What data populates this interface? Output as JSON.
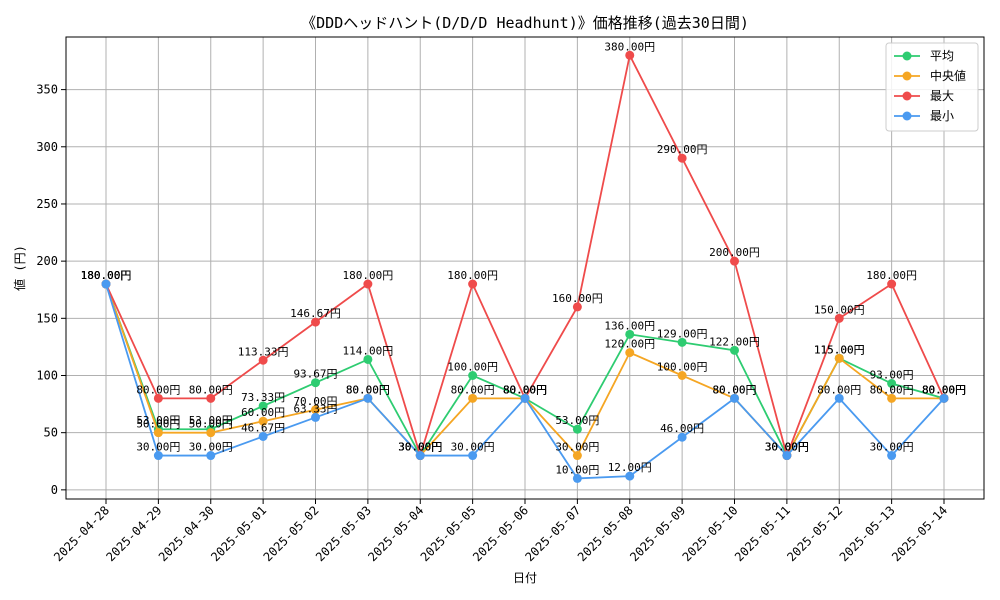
{
  "chart_data": {
    "type": "line",
    "title": "《DDDヘッドハント(D/D/D Headhunt)》価格推移(過去30日間)",
    "xlabel": "日付",
    "ylabel": "値 (円)",
    "ylim": [
      -8,
      396
    ],
    "yticks": [
      0,
      50,
      100,
      150,
      200,
      250,
      300,
      350
    ],
    "grid": true,
    "legend_position": "top-right",
    "label_suffix": "円",
    "categories": [
      "2025-04-28",
      "2025-04-29",
      "2025-04-30",
      "2025-05-01",
      "2025-05-02",
      "2025-05-03",
      "2025-05-04",
      "2025-05-05",
      "2025-05-06",
      "2025-05-07",
      "2025-05-08",
      "2025-05-09",
      "2025-05-10",
      "2025-05-11",
      "2025-05-12",
      "2025-05-13",
      "2025-05-14"
    ],
    "series": [
      {
        "name": "平均",
        "color": "#2ecc71",
        "values": [
          180,
          53,
          53,
          73.33,
          93.67,
          114,
          30,
          100,
          80,
          53,
          136,
          129,
          122,
          30,
          115,
          93,
          80
        ]
      },
      {
        "name": "中央値",
        "color": "#f5a623",
        "values": [
          180,
          50,
          50,
          60,
          70,
          80,
          30,
          80,
          80,
          30,
          120,
          100,
          80,
          30,
          115,
          80,
          80
        ]
      },
      {
        "name": "最大",
        "color": "#ef4b4b",
        "values": [
          180,
          80,
          80,
          113.33,
          146.67,
          180,
          30,
          180,
          80,
          160,
          380,
          290,
          200,
          30,
          150,
          180,
          80
        ]
      },
      {
        "name": "最小",
        "color": "#4a9af0",
        "values": [
          180,
          30,
          30,
          46.67,
          63.33,
          80,
          30,
          30,
          80,
          10,
          12,
          46,
          80,
          30,
          80,
          30,
          80
        ]
      }
    ]
  }
}
